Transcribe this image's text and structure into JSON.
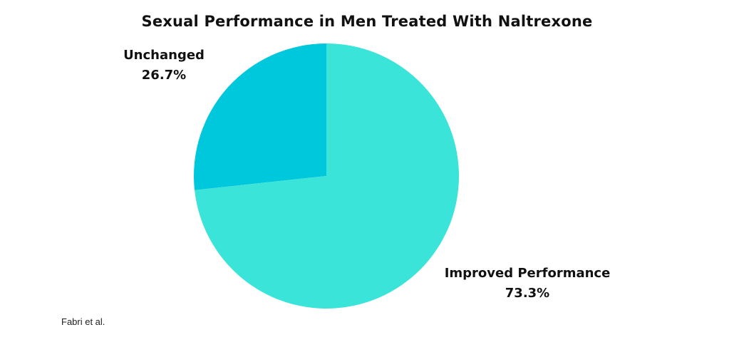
{
  "chart_data": {
    "type": "pie",
    "title": "Sexual Performance in Men Treated With Naltrexone",
    "slices": [
      {
        "label": "Unchanged",
        "value": 26.7,
        "value_label": "26.7%",
        "color": "#00c8dc"
      },
      {
        "label": "Improved Performance",
        "value": 73.3,
        "value_label": "73.3%",
        "color": "#3ae4d8"
      }
    ]
  },
  "source": "Fabri et al."
}
